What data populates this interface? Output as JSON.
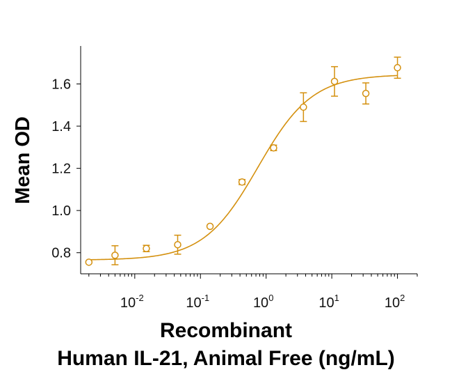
{
  "chart_data": {
    "type": "scatter",
    "title": "",
    "ylabel": "Mean OD",
    "xlabel_line1": "Recombinant",
    "xlabel_line2": "Human IL-21, Animal Free (ng/mL)",
    "x_scale": "log",
    "xlim": [
      0.0015,
      200
    ],
    "ylim": [
      0.7,
      1.78
    ],
    "x_ticks": [
      {
        "value": 0.01,
        "base": "10",
        "exp": "-2"
      },
      {
        "value": 0.1,
        "base": "10",
        "exp": "-1"
      },
      {
        "value": 1,
        "base": "10",
        "exp": "0"
      },
      {
        "value": 10,
        "base": "10",
        "exp": "1"
      },
      {
        "value": 100,
        "base": "10",
        "exp": "2"
      }
    ],
    "y_ticks": [
      {
        "value": 0.8,
        "label": "0.8"
      },
      {
        "value": 1.0,
        "label": "1.0"
      },
      {
        "value": 1.2,
        "label": "1.2"
      },
      {
        "value": 1.4,
        "label": "1.4"
      },
      {
        "value": 1.6,
        "label": "1.6"
      }
    ],
    "grid": false,
    "color": "#D4900E",
    "series": [
      {
        "points": [
          {
            "x": 0.002,
            "y": 0.755,
            "err": 0.0
          },
          {
            "x": 0.005,
            "y": 0.788,
            "err": 0.045
          },
          {
            "x": 0.015,
            "y": 0.82,
            "err": 0.015
          },
          {
            "x": 0.045,
            "y": 0.838,
            "err": 0.045
          },
          {
            "x": 0.14,
            "y": 0.925,
            "err": 0.0
          },
          {
            "x": 0.43,
            "y": 1.135,
            "err": 0.012
          },
          {
            "x": 1.3,
            "y": 1.297,
            "err": 0.013
          },
          {
            "x": 3.7,
            "y": 1.49,
            "err": 0.068
          },
          {
            "x": 11,
            "y": 1.612,
            "err": 0.07
          },
          {
            "x": 33,
            "y": 1.555,
            "err": 0.05
          },
          {
            "x": 100,
            "y": 1.677,
            "err": 0.05
          }
        ],
        "fit": {
          "bottom": 0.765,
          "top": 1.645,
          "ec50": 0.75,
          "hill": 1.05
        }
      }
    ]
  }
}
